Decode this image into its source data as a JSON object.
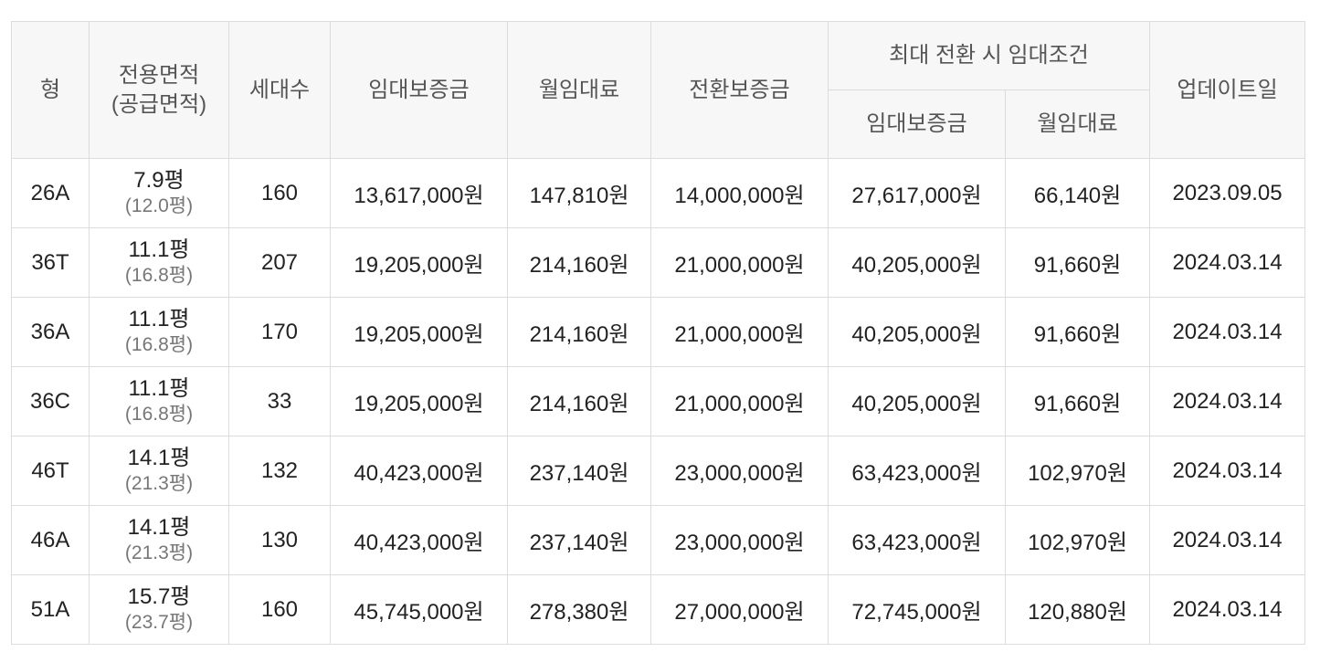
{
  "header": {
    "type": "형",
    "area_line1": "전용면적",
    "area_line2": "(공급면적)",
    "households": "세대수",
    "deposit": "임대보증금",
    "monthly_rent": "월임대료",
    "conversion_deposit": "전환보증금",
    "max_conversion": "최대 전환 시 임대조건",
    "max_deposit": "임대보증금",
    "max_monthly_rent": "월임대료",
    "updated": "업데이트일"
  },
  "rows": [
    {
      "type": "26A",
      "area": "7.9평",
      "supply": "(12.0평)",
      "households": "160",
      "deposit": "13,617,000원",
      "rent": "147,810원",
      "conv": "14,000,000원",
      "max_deposit": "27,617,000원",
      "max_rent": "66,140원",
      "updated": "2023.09.05"
    },
    {
      "type": "36T",
      "area": "11.1평",
      "supply": "(16.8평)",
      "households": "207",
      "deposit": "19,205,000원",
      "rent": "214,160원",
      "conv": "21,000,000원",
      "max_deposit": "40,205,000원",
      "max_rent": "91,660원",
      "updated": "2024.03.14"
    },
    {
      "type": "36A",
      "area": "11.1평",
      "supply": "(16.8평)",
      "households": "170",
      "deposit": "19,205,000원",
      "rent": "214,160원",
      "conv": "21,000,000원",
      "max_deposit": "40,205,000원",
      "max_rent": "91,660원",
      "updated": "2024.03.14"
    },
    {
      "type": "36C",
      "area": "11.1평",
      "supply": "(16.8평)",
      "households": "33",
      "deposit": "19,205,000원",
      "rent": "214,160원",
      "conv": "21,000,000원",
      "max_deposit": "40,205,000원",
      "max_rent": "91,660원",
      "updated": "2024.03.14"
    },
    {
      "type": "46T",
      "area": "14.1평",
      "supply": "(21.3평)",
      "households": "132",
      "deposit": "40,423,000원",
      "rent": "237,140원",
      "conv": "23,000,000원",
      "max_deposit": "63,423,000원",
      "max_rent": "102,970원",
      "updated": "2024.03.14"
    },
    {
      "type": "46A",
      "area": "14.1평",
      "supply": "(21.3평)",
      "households": "130",
      "deposit": "40,423,000원",
      "rent": "237,140원",
      "conv": "23,000,000원",
      "max_deposit": "63,423,000원",
      "max_rent": "102,970원",
      "updated": "2024.03.14"
    },
    {
      "type": "51A",
      "area": "15.7평",
      "supply": "(23.7평)",
      "households": "160",
      "deposit": "45,745,000원",
      "rent": "278,380원",
      "conv": "27,000,000원",
      "max_deposit": "72,745,000원",
      "max_rent": "120,880원",
      "updated": "2024.03.14"
    }
  ]
}
